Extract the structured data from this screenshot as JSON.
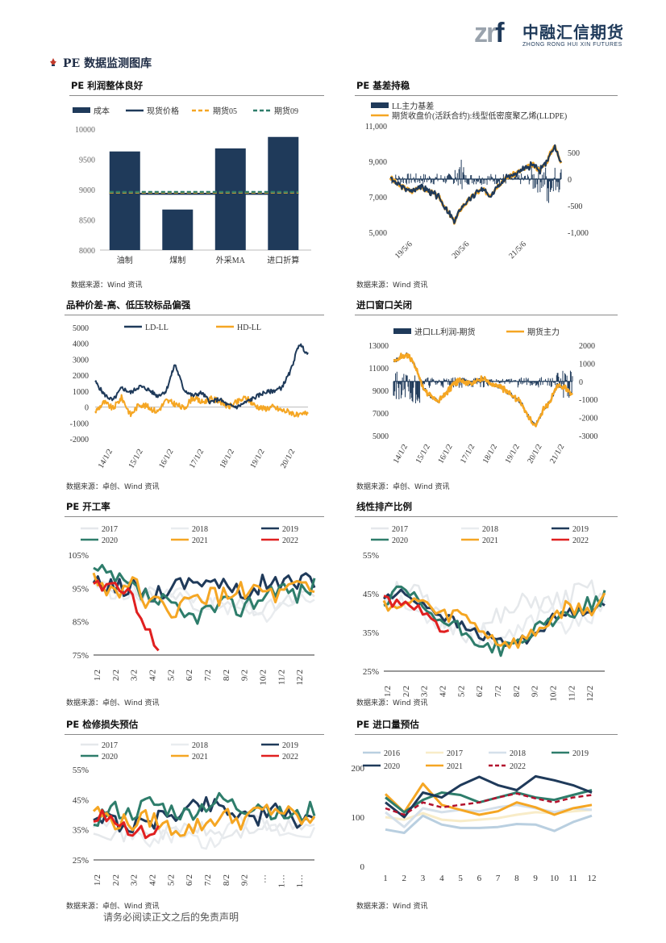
{
  "header": {
    "logo_mark_a": "zr",
    "logo_mark_b": "f",
    "logo_cn": "中融汇信期货",
    "logo_en": "ZHONG RONG HUI XIN FUTURES"
  },
  "section_title": "PE 数据监测图库",
  "footer": {
    "disclaimer": "请务必阅读正文之后的免责声明"
  },
  "colors": {
    "navy": "#1f3a5a",
    "orange": "#f5a623",
    "green": "#2e7d6b",
    "red": "#e02020",
    "light_blue": "#b9cfe0",
    "pale": "#e5e8eb",
    "cream": "#f8ecc8"
  },
  "chart_data": [
    {
      "id": "c1",
      "type": "bar",
      "title": "PE 利润整体良好",
      "source": "数据来源：Wind 资讯",
      "categories": [
        "油制",
        "煤制",
        "外采MA",
        "进口折算"
      ],
      "series": [
        {
          "name": "成本",
          "values": [
            9630,
            8670,
            9680,
            9870
          ]
        }
      ],
      "lines": [
        {
          "name": "现货价格",
          "value": 8930,
          "style": "solid",
          "color": "#1f3a5a"
        },
        {
          "name": "期货05",
          "value": 8950,
          "style": "dashed",
          "color": "#f5a623"
        },
        {
          "name": "期货09",
          "value": 8960,
          "style": "dashed",
          "color": "#2e7d6b"
        }
      ],
      "yticks": [
        "10000",
        "9500",
        "9000",
        "8500",
        "8000"
      ],
      "ylim": [
        8000,
        10000
      ]
    },
    {
      "id": "c2",
      "type": "line",
      "title": "PE 基差持稳",
      "source": "数据来源：Wind 资讯",
      "legend": [
        "LL主力基差",
        "期货收盘价(活跃合约):线型低密度聚乙烯(LLDPE)"
      ],
      "yticks_left": [
        "11,000",
        "9,000",
        "7,000",
        "5,000"
      ],
      "yticks_right": [
        "500",
        "0",
        "-500",
        "-1,000"
      ],
      "xticks": [
        "19/5/6",
        "20/5/6",
        "21/5/6"
      ],
      "ylim_left": [
        5000,
        11000
      ],
      "ylim_right": [
        -1000,
        1000
      ]
    },
    {
      "id": "c3",
      "type": "line",
      "title": "品种价差-高、低压较标品偏强",
      "source": "数据来源：卓创、Wind 资讯",
      "legend": [
        "LD-LL",
        "HD-LL"
      ],
      "yticks": [
        "5000",
        "4000",
        "3000",
        "2000",
        "1000",
        "0",
        "-1000",
        "-2000"
      ],
      "xticks": [
        "14/1/2",
        "15/1/2",
        "16/1/2",
        "17/1/2",
        "18/1/2",
        "19/1/2",
        "20/1/2"
      ],
      "ylim": [
        -2000,
        5000
      ]
    },
    {
      "id": "c4",
      "type": "line",
      "title": "进口窗口关闭",
      "source": "数据来源：卓创、Wind 资讯",
      "legend": [
        "进口LL利润-期货",
        "期货主力"
      ],
      "yticks_left": [
        "13000",
        "11000",
        "9000",
        "7000",
        "5000"
      ],
      "yticks_right": [
        "2000",
        "1000",
        "0",
        "-1000",
        "-2000",
        "-3000"
      ],
      "xticks": [
        "14/1/2",
        "15/1/2",
        "16/1/2",
        "17/1/2",
        "18/1/2",
        "19/1/2",
        "20/1/2",
        "21/1/2"
      ],
      "ylim_left": [
        5000,
        13000
      ],
      "ylim_right": [
        -3000,
        2000
      ]
    },
    {
      "id": "c5",
      "type": "line",
      "title": "PE 开工率",
      "source": "数据来源：卓创、Wind 资讯",
      "legend": [
        "2017",
        "2018",
        "2019",
        "2020",
        "2021",
        "2022"
      ],
      "yticks": [
        "105%",
        "95%",
        "85%",
        "75%"
      ],
      "ylim": [
        75,
        105
      ],
      "xticks": [
        "1/2",
        "2/2",
        "3/2",
        "4/2",
        "5/2",
        "6/2",
        "7/2",
        "8/2",
        "9/2",
        "10/2",
        "11/2",
        "12/2"
      ]
    },
    {
      "id": "c6",
      "type": "line",
      "title": "线性排产比例",
      "source": "数据来源：Wind 资讯",
      "legend": [
        "2017",
        "2018",
        "2019",
        "2020",
        "2021",
        "2022"
      ],
      "yticks": [
        "55%",
        "45%",
        "35%",
        "25%"
      ],
      "ylim": [
        25,
        55
      ],
      "xticks": [
        "1/2",
        "2/2",
        "3/2",
        "4/2",
        "5/2",
        "6/2",
        "7/2",
        "8/2",
        "9/2",
        "10/2",
        "11/2",
        "12/2"
      ]
    },
    {
      "id": "c7",
      "type": "line",
      "title": "PE 检修损失预估",
      "source": "数据来源：卓创、Wind 资讯",
      "legend": [
        "2017",
        "2018",
        "2019",
        "2020",
        "2021",
        "2022"
      ],
      "yticks": [
        "55%",
        "45%",
        "35%",
        "25%"
      ],
      "ylim": [
        25,
        55
      ],
      "xticks": [
        "1/2",
        "2/2",
        "3/2",
        "4/2",
        "5/2",
        "6/2",
        "7/2",
        "8/2",
        "9/2",
        "…",
        "1…",
        "1…"
      ]
    },
    {
      "id": "c8",
      "type": "line",
      "title": "PE 进口量预估",
      "source": "数据来源：Wind 资讯",
      "legend": [
        "2016",
        "2017",
        "2018",
        "2019",
        "2020",
        "2021",
        "2022"
      ],
      "yticks": [
        "200",
        "100",
        "0"
      ],
      "ylim": [
        0,
        200
      ],
      "xticks": [
        "1",
        "2",
        "3",
        "4",
        "5",
        "6",
        "7",
        "8",
        "9",
        "10",
        "11",
        "12"
      ],
      "series": [
        {
          "name": "2016",
          "values": [
            75,
            68,
            103,
            85,
            78,
            78,
            80,
            86,
            85,
            72,
            90,
            103
          ]
        },
        {
          "name": "2017",
          "values": [
            100,
            95,
            108,
            95,
            92,
            95,
            98,
            105,
            110,
            108,
            112,
            115
          ]
        },
        {
          "name": "2018",
          "values": [
            110,
            80,
            118,
            110,
            115,
            112,
            120,
            125,
            118,
            110,
            118,
            115
          ]
        },
        {
          "name": "2019",
          "values": [
            140,
            110,
            135,
            150,
            145,
            130,
            140,
            150,
            140,
            135,
            145,
            155
          ]
        },
        {
          "name": "2020",
          "values": [
            130,
            100,
            150,
            140,
            165,
            182,
            165,
            155,
            183,
            175,
            165,
            150
          ]
        },
        {
          "name": "2021",
          "values": [
            147,
            110,
            168,
            125,
            115,
            105,
            112,
            130,
            120,
            105,
            118,
            125
          ]
        },
        {
          "name": "2022",
          "values": [
            118,
            105,
            130,
            120,
            125,
            130,
            140,
            148,
            138,
            130,
            140,
            145
          ]
        }
      ]
    }
  ]
}
